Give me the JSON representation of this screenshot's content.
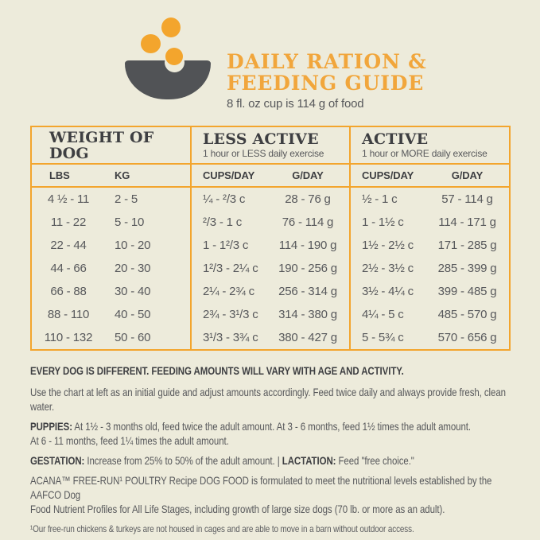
{
  "header": {
    "icon": "dog-bowl-kibble-icon",
    "title_line1": "DAILY RATION &",
    "title_line2": "FEEDING GUIDE",
    "subtitle": "8 fl. oz cup is 114 g of food"
  },
  "colors": {
    "background": "#EDEBDB",
    "accent_orange": "#F3A52D",
    "title_orange": "#F1A63C",
    "bowl_gray": "#515356",
    "heading_text": "#3E3F42",
    "body_text": "#57585B"
  },
  "table": {
    "groups": [
      {
        "label": "WEIGHT OF DOG",
        "sublabel": ""
      },
      {
        "label": "LESS ACTIVE",
        "sublabel": "1 hour or LESS daily exercise"
      },
      {
        "label": "ACTIVE",
        "sublabel": "1 hour or MORE daily exercise"
      }
    ],
    "columns": [
      "LBS",
      "KG",
      "CUPS/DAY",
      "G/DAY",
      "CUPS/DAY",
      "G/DAY"
    ],
    "rows": [
      [
        "4 ½ - 11",
        "2 - 5",
        "¼ - ²/3 c",
        "28 - 76 g",
        "½ - 1 c",
        "57 - 114 g"
      ],
      [
        "11 - 22",
        "5 - 10",
        "²/3 - 1 c",
        "76 - 114 g",
        "1 - 1½ c",
        "114 - 171 g"
      ],
      [
        "22 - 44",
        "10 - 20",
        "1 - 1²/3 c",
        "114 - 190 g",
        "1½ - 2½ c",
        "171 - 285 g"
      ],
      [
        "44 - 66",
        "20 - 30",
        "1²/3 - 2¼ c",
        "190 - 256 g",
        "2½ - 3½ c",
        "285 - 399 g"
      ],
      [
        "66 - 88",
        "30 - 40",
        "2¼ - 2¾ c",
        "256 - 314 g",
        "3½ - 4¼ c",
        "399 - 485 g"
      ],
      [
        "88 - 110",
        "40 - 50",
        "2¾ - 3¹/3 c",
        "314 - 380 g",
        "4¼ - 5 c",
        "485 - 570 g"
      ],
      [
        "110 - 132",
        "50 - 60",
        "3¹/3 - 3¾ c",
        "380 - 427 g",
        "5 - 5¾ c",
        "570 - 656 g"
      ]
    ]
  },
  "notes": {
    "heading": "EVERY DOG IS DIFFERENT. FEEDING AMOUNTS WILL VARY WITH AGE AND ACTIVITY.",
    "intro": "Use the chart at left as an initial guide and adjust amounts accordingly. Feed twice daily and always provide fresh, clean water.",
    "puppies": {
      "label": "PUPPIES:",
      "line1": " At 1½ - 3 months old, feed twice the adult amount. At 3 - 6 months, feed 1½ times the adult amount.",
      "line2": "At 6 - 11 months, feed 1¼ times the adult amount."
    },
    "gestation": {
      "label": "GESTATION:",
      "text": " Increase from 25% to 50% of the adult amount. "
    },
    "pipe": "|",
    "lactation": {
      "label": " LACTATION:",
      "text": " Feed \"free choice.\""
    },
    "aafco_line1": "ACANA™ FREE-RUN¹ POULTRY Recipe DOG FOOD is formulated to meet the nutritional levels established by the AAFCO Dog",
    "aafco_line2": "Food Nutrient Profiles for All Life Stages, including growth of large size dogs (70 lb. or more as an adult).",
    "footnote": "¹Our free-run chickens & turkeys are not housed in cages and are able to move in a barn without outdoor access."
  }
}
